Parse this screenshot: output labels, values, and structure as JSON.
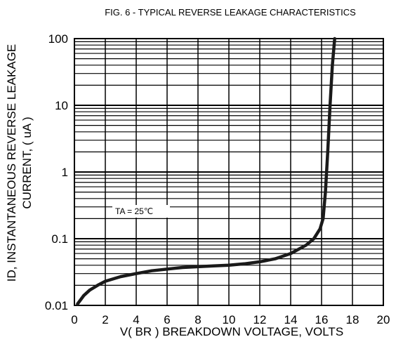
{
  "chart_data": {
    "type": "line",
    "title": "FIG. 6 - TYPICAL REVERSE LEAKAGE CHARACTERISTICS",
    "xlabel": "V( BR ) BREAKDOWN VOLTAGE, VOLTS",
    "ylabel_line1": "ID, INSTANTANEOUS REVERSE LEAKAGE",
    "ylabel_line2": "CURRENT, ( uA )",
    "xlim": [
      0,
      20
    ],
    "ylim": [
      0.01,
      100
    ],
    "yscale": "log",
    "grid": true,
    "x_ticks": [
      0,
      2,
      4,
      6,
      8,
      10,
      12,
      14,
      16,
      18,
      20
    ],
    "x_tick_labels": [
      "0",
      "2",
      "4",
      "6",
      "8",
      "10",
      "12",
      "14",
      "16",
      "18",
      "20"
    ],
    "y_ticks": [
      0.01,
      0.1,
      1,
      10,
      100
    ],
    "y_tick_labels": [
      "0.01",
      "0.1",
      "1",
      "10",
      "100"
    ],
    "annotation": "TA = 25℃",
    "series": [
      {
        "x": [
          0.2,
          0.6,
          1.0,
          1.5,
          2.0,
          3.0,
          4.0,
          5.0,
          6.0,
          7.0,
          8.0,
          9.0,
          10.0,
          11.0,
          12.0,
          13.0,
          14.0,
          15.0,
          15.5,
          15.9,
          16.1,
          16.25,
          16.4,
          16.55,
          16.7,
          16.85
        ],
        "y": [
          0.0105,
          0.014,
          0.017,
          0.02,
          0.023,
          0.027,
          0.03,
          0.033,
          0.035,
          0.037,
          0.038,
          0.039,
          0.04,
          0.042,
          0.045,
          0.05,
          0.06,
          0.08,
          0.1,
          0.14,
          0.2,
          0.5,
          2,
          10,
          40,
          100
        ],
        "color": "#1a1a1a"
      }
    ]
  }
}
